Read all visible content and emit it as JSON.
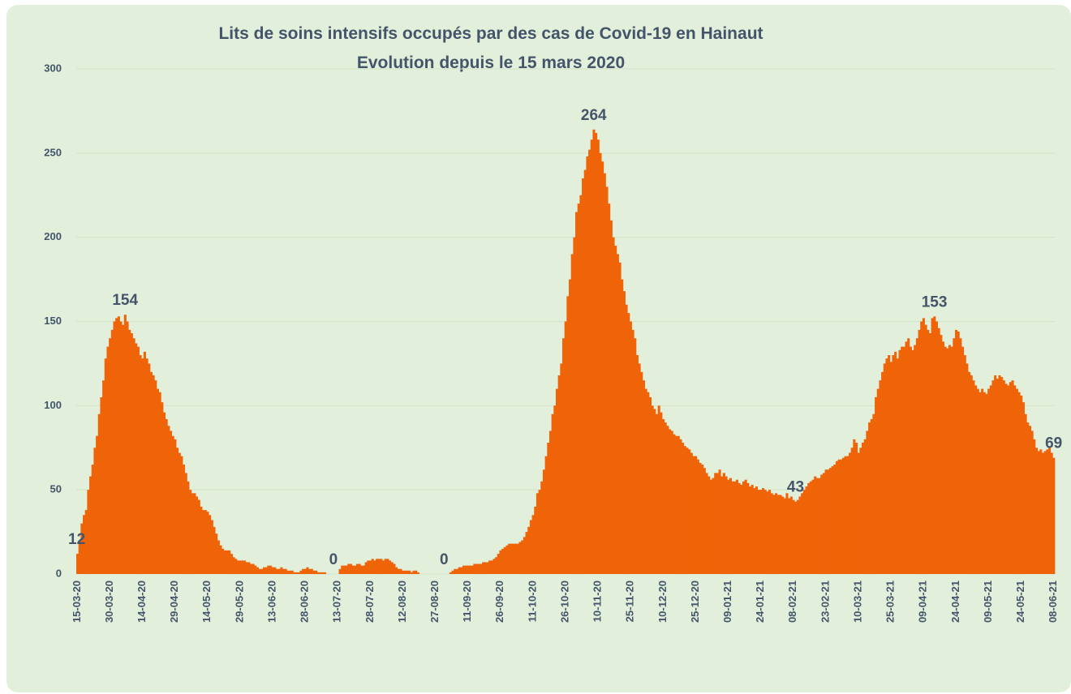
{
  "chart_data": {
    "type": "bar",
    "title": "Lits de soins intensifs occupés par des cas de Covid-19 en Hainaut",
    "subtitle": "Evolution depuis le 15 mars 2020",
    "categories": [
      "15-03-20",
      null,
      null,
      null,
      null,
      null,
      null,
      null,
      null,
      null,
      null,
      null,
      null,
      null,
      null,
      "30-03-20",
      null,
      null,
      null,
      null,
      null,
      null,
      null,
      null,
      null,
      null,
      null,
      null,
      null,
      null,
      "14-04-20",
      null,
      null,
      null,
      null,
      null,
      null,
      null,
      null,
      null,
      null,
      null,
      null,
      null,
      null,
      "29-04-20",
      null,
      null,
      null,
      null,
      null,
      null,
      null,
      null,
      null,
      null,
      null,
      null,
      null,
      null,
      "14-05-20",
      null,
      null,
      null,
      null,
      null,
      null,
      null,
      null,
      null,
      null,
      null,
      null,
      null,
      null,
      "29-05-20",
      null,
      null,
      null,
      null,
      null,
      null,
      null,
      null,
      null,
      null,
      null,
      null,
      null,
      null,
      "13-06-20",
      null,
      null,
      null,
      null,
      null,
      null,
      null,
      null,
      null,
      null,
      null,
      null,
      null,
      null,
      "28-06-20",
      null,
      null,
      null,
      null,
      null,
      null,
      null,
      null,
      null,
      null,
      null,
      null,
      null,
      null,
      "13-07-20",
      null,
      null,
      null,
      null,
      null,
      null,
      null,
      null,
      null,
      null,
      null,
      null,
      null,
      null,
      "28-07-20",
      null,
      null,
      null,
      null,
      null,
      null,
      null,
      null,
      null,
      null,
      null,
      null,
      null,
      null,
      "12-08-20",
      null,
      null,
      null,
      null,
      null,
      null,
      null,
      null,
      null,
      null,
      null,
      null,
      null,
      null,
      "27-08-20",
      null,
      null,
      null,
      null,
      null,
      null,
      null,
      null,
      null,
      null,
      null,
      null,
      null,
      null,
      "11-09-20",
      null,
      null,
      null,
      null,
      null,
      null,
      null,
      null,
      null,
      null,
      null,
      null,
      null,
      null,
      "26-09-20",
      null,
      null,
      null,
      null,
      null,
      null,
      null,
      null,
      null,
      null,
      null,
      null,
      null,
      null,
      "11-10-20",
      null,
      null,
      null,
      null,
      null,
      null,
      null,
      null,
      null,
      null,
      null,
      null,
      null,
      null,
      "26-10-20",
      null,
      null,
      null,
      null,
      null,
      null,
      null,
      null,
      null,
      null,
      null,
      null,
      null,
      null,
      "10-11-20",
      null,
      null,
      null,
      null,
      null,
      null,
      null,
      null,
      null,
      null,
      null,
      null,
      null,
      null,
      "25-11-20",
      null,
      null,
      null,
      null,
      null,
      null,
      null,
      null,
      null,
      null,
      null,
      null,
      null,
      null,
      "10-12-20",
      null,
      null,
      null,
      null,
      null,
      null,
      null,
      null,
      null,
      null,
      null,
      null,
      null,
      null,
      "25-12-20",
      null,
      null,
      null,
      null,
      null,
      null,
      null,
      null,
      null,
      null,
      null,
      null,
      null,
      null,
      "09-01-21",
      null,
      null,
      null,
      null,
      null,
      null,
      null,
      null,
      null,
      null,
      null,
      null,
      null,
      null,
      "24-01-21",
      null,
      null,
      null,
      null,
      null,
      null,
      null,
      null,
      null,
      null,
      null,
      null,
      null,
      null,
      "08-02-21",
      null,
      null,
      null,
      null,
      null,
      null,
      null,
      null,
      null,
      null,
      null,
      null,
      null,
      null,
      "23-02-21",
      null,
      null,
      null,
      null,
      null,
      null,
      null,
      null,
      null,
      null,
      null,
      null,
      null,
      null,
      "10-03-21",
      null,
      null,
      null,
      null,
      null,
      null,
      null,
      null,
      null,
      null,
      null,
      null,
      null,
      null,
      "25-03-21",
      null,
      null,
      null,
      null,
      null,
      null,
      null,
      null,
      null,
      null,
      null,
      null,
      null,
      null,
      "09-04-21",
      null,
      null,
      null,
      null,
      null,
      null,
      null,
      null,
      null,
      null,
      null,
      null,
      null,
      null,
      "24-04-21",
      null,
      null,
      null,
      null,
      null,
      null,
      null,
      null,
      null,
      null,
      null,
      null,
      null,
      null,
      "09-05-21",
      null,
      null,
      null,
      null,
      null,
      null,
      null,
      null,
      null,
      null,
      null,
      null,
      null,
      null,
      "24-05-21",
      null,
      null,
      null,
      null,
      null,
      null,
      null,
      null,
      null,
      null,
      null,
      null,
      null,
      null,
      "08-06-21"
    ],
    "values": [
      12,
      20,
      30,
      35,
      38,
      50,
      58,
      65,
      75,
      82,
      95,
      105,
      115,
      128,
      135,
      140,
      145,
      150,
      152,
      153,
      150,
      148,
      154,
      150,
      145,
      143,
      140,
      137,
      135,
      130,
      128,
      132,
      128,
      125,
      120,
      118,
      115,
      110,
      108,
      102,
      96,
      92,
      88,
      85,
      82,
      80,
      75,
      72,
      70,
      65,
      60,
      55,
      50,
      48,
      48,
      46,
      44,
      40,
      38,
      38,
      37,
      35,
      32,
      28,
      24,
      20,
      17,
      15,
      14,
      14,
      14,
      12,
      10,
      9,
      8,
      8,
      8,
      8,
      7,
      7,
      6,
      6,
      5,
      4,
      3,
      3,
      4,
      4,
      5,
      5,
      4,
      4,
      3,
      3,
      4,
      3,
      3,
      2,
      2,
      2,
      1,
      1,
      1,
      2,
      3,
      3,
      4,
      3,
      3,
      2,
      2,
      1,
      1,
      1,
      1,
      0,
      0,
      0,
      0,
      0,
      0,
      3,
      5,
      5,
      5,
      6,
      6,
      5,
      5,
      6,
      6,
      5,
      5,
      7,
      8,
      8,
      9,
      8,
      9,
      9,
      9,
      8,
      9,
      9,
      8,
      7,
      6,
      4,
      3,
      3,
      2,
      2,
      2,
      2,
      1,
      2,
      2,
      1,
      0,
      0,
      0,
      0,
      0,
      0,
      0,
      0,
      0,
      0,
      0,
      0,
      0,
      0,
      1,
      2,
      3,
      3,
      4,
      4,
      5,
      5,
      5,
      5,
      5,
      6,
      6,
      6,
      6,
      7,
      7,
      7,
      8,
      8,
      9,
      10,
      12,
      14,
      15,
      16,
      17,
      18,
      18,
      18,
      18,
      18,
      19,
      20,
      22,
      25,
      28,
      32,
      35,
      40,
      48,
      50,
      55,
      62,
      70,
      78,
      85,
      95,
      100,
      110,
      118,
      125,
      140,
      150,
      165,
      175,
      190,
      200,
      215,
      220,
      225,
      235,
      240,
      248,
      252,
      258,
      264,
      262,
      258,
      250,
      245,
      238,
      230,
      220,
      210,
      200,
      195,
      190,
      185,
      175,
      168,
      160,
      155,
      150,
      145,
      140,
      130,
      125,
      120,
      115,
      110,
      108,
      105,
      100,
      98,
      95,
      100,
      96,
      92,
      90,
      88,
      86,
      85,
      83,
      82,
      82,
      80,
      78,
      76,
      75,
      74,
      72,
      70,
      70,
      68,
      66,
      65,
      63,
      60,
      58,
      56,
      57,
      60,
      60,
      62,
      58,
      60,
      58,
      56,
      57,
      55,
      55,
      56,
      54,
      53,
      55,
      56,
      54,
      52,
      53,
      51,
      52,
      50,
      50,
      51,
      50,
      49,
      50,
      48,
      47,
      48,
      47,
      47,
      46,
      45,
      48,
      45,
      46,
      44,
      43,
      44,
      46,
      48,
      50,
      52,
      54,
      55,
      56,
      58,
      57,
      57,
      59,
      60,
      62,
      62,
      63,
      64,
      65,
      67,
      68,
      68,
      69,
      70,
      70,
      72,
      75,
      80,
      78,
      72,
      75,
      78,
      80,
      85,
      90,
      92,
      95,
      105,
      110,
      115,
      120,
      125,
      128,
      130,
      126,
      130,
      132,
      128,
      133,
      135,
      135,
      138,
      140,
      135,
      133,
      136,
      140,
      145,
      150,
      152,
      148,
      145,
      143,
      152,
      153,
      150,
      146,
      142,
      138,
      135,
      134,
      136,
      135,
      140,
      145,
      144,
      140,
      135,
      130,
      125,
      120,
      118,
      115,
      112,
      110,
      108,
      110,
      108,
      107,
      110,
      112,
      115,
      118,
      116,
      118,
      117,
      115,
      113,
      112,
      114,
      115,
      112,
      110,
      108,
      106,
      102,
      95,
      90,
      88,
      85,
      80,
      75,
      73,
      74,
      72,
      73,
      74,
      75,
      72,
      69
    ],
    "labeled_points": [
      0,
      22,
      118,
      169,
      238,
      331,
      395,
      450
    ],
    "color": "#f06409",
    "ylim": [
      0,
      300
    ],
    "yticks": [
      0,
      50,
      100,
      150,
      200,
      250,
      300
    ],
    "grid": true
  }
}
